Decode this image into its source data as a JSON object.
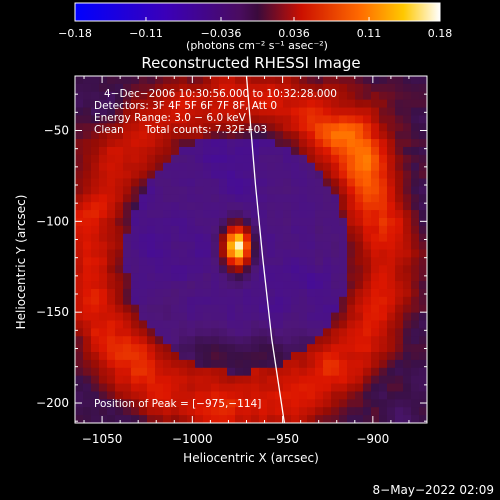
{
  "chart_data": {
    "type": "heatmap",
    "title": "Reconstructed RHESSI Image",
    "xlabel": "Heliocentric X (arcsec)",
    "ylabel": "Heliocentric Y (arcsec)",
    "xlim": [
      -1065,
      -870
    ],
    "ylim": [
      -211,
      -20
    ],
    "x_ticks": [
      -1050,
      -1000,
      -950,
      -900
    ],
    "y_ticks": [
      -200,
      -150,
      -100,
      -50
    ],
    "x_tick_labels": [
      "−1050",
      "−1000",
      "−950",
      "−900"
    ],
    "y_tick_labels": [
      "−200",
      "−150",
      "−100",
      "−50"
    ],
    "colorbar": {
      "range": [
        -0.18,
        0.18
      ],
      "ticks": [
        -0.18,
        -0.11,
        -0.036,
        0.036,
        0.11,
        0.18
      ],
      "tick_labels": [
        "−0.18",
        "−0.11",
        "−0.036",
        "0.036",
        "0.11",
        "0.18"
      ],
      "units_label": "(photons cm⁻² s⁻¹ asec⁻²)"
    },
    "peak": {
      "x": -975,
      "y": -114,
      "value": 0.18
    },
    "annotations": [
      "4−Dec−2006 10:30:56.000 to 10:32:28.000",
      "Detectors: 3F 4F 5F 6F 7F 8F, Att 0",
      "Energy Range: 3.0 − 6.0 keV",
      "Clean",
      "Total counts: 7.32E+03"
    ],
    "peak_label": "Position of Peak = [−975,−114]",
    "limb_curve": [
      [
        -970,
        -20
      ],
      [
        -965,
        -80
      ],
      [
        -961,
        -120
      ],
      [
        -956,
        -165
      ],
      [
        -949,
        -211
      ]
    ],
    "grid": false
  },
  "footer": {
    "date_label": "8−May−2022 02:09"
  }
}
